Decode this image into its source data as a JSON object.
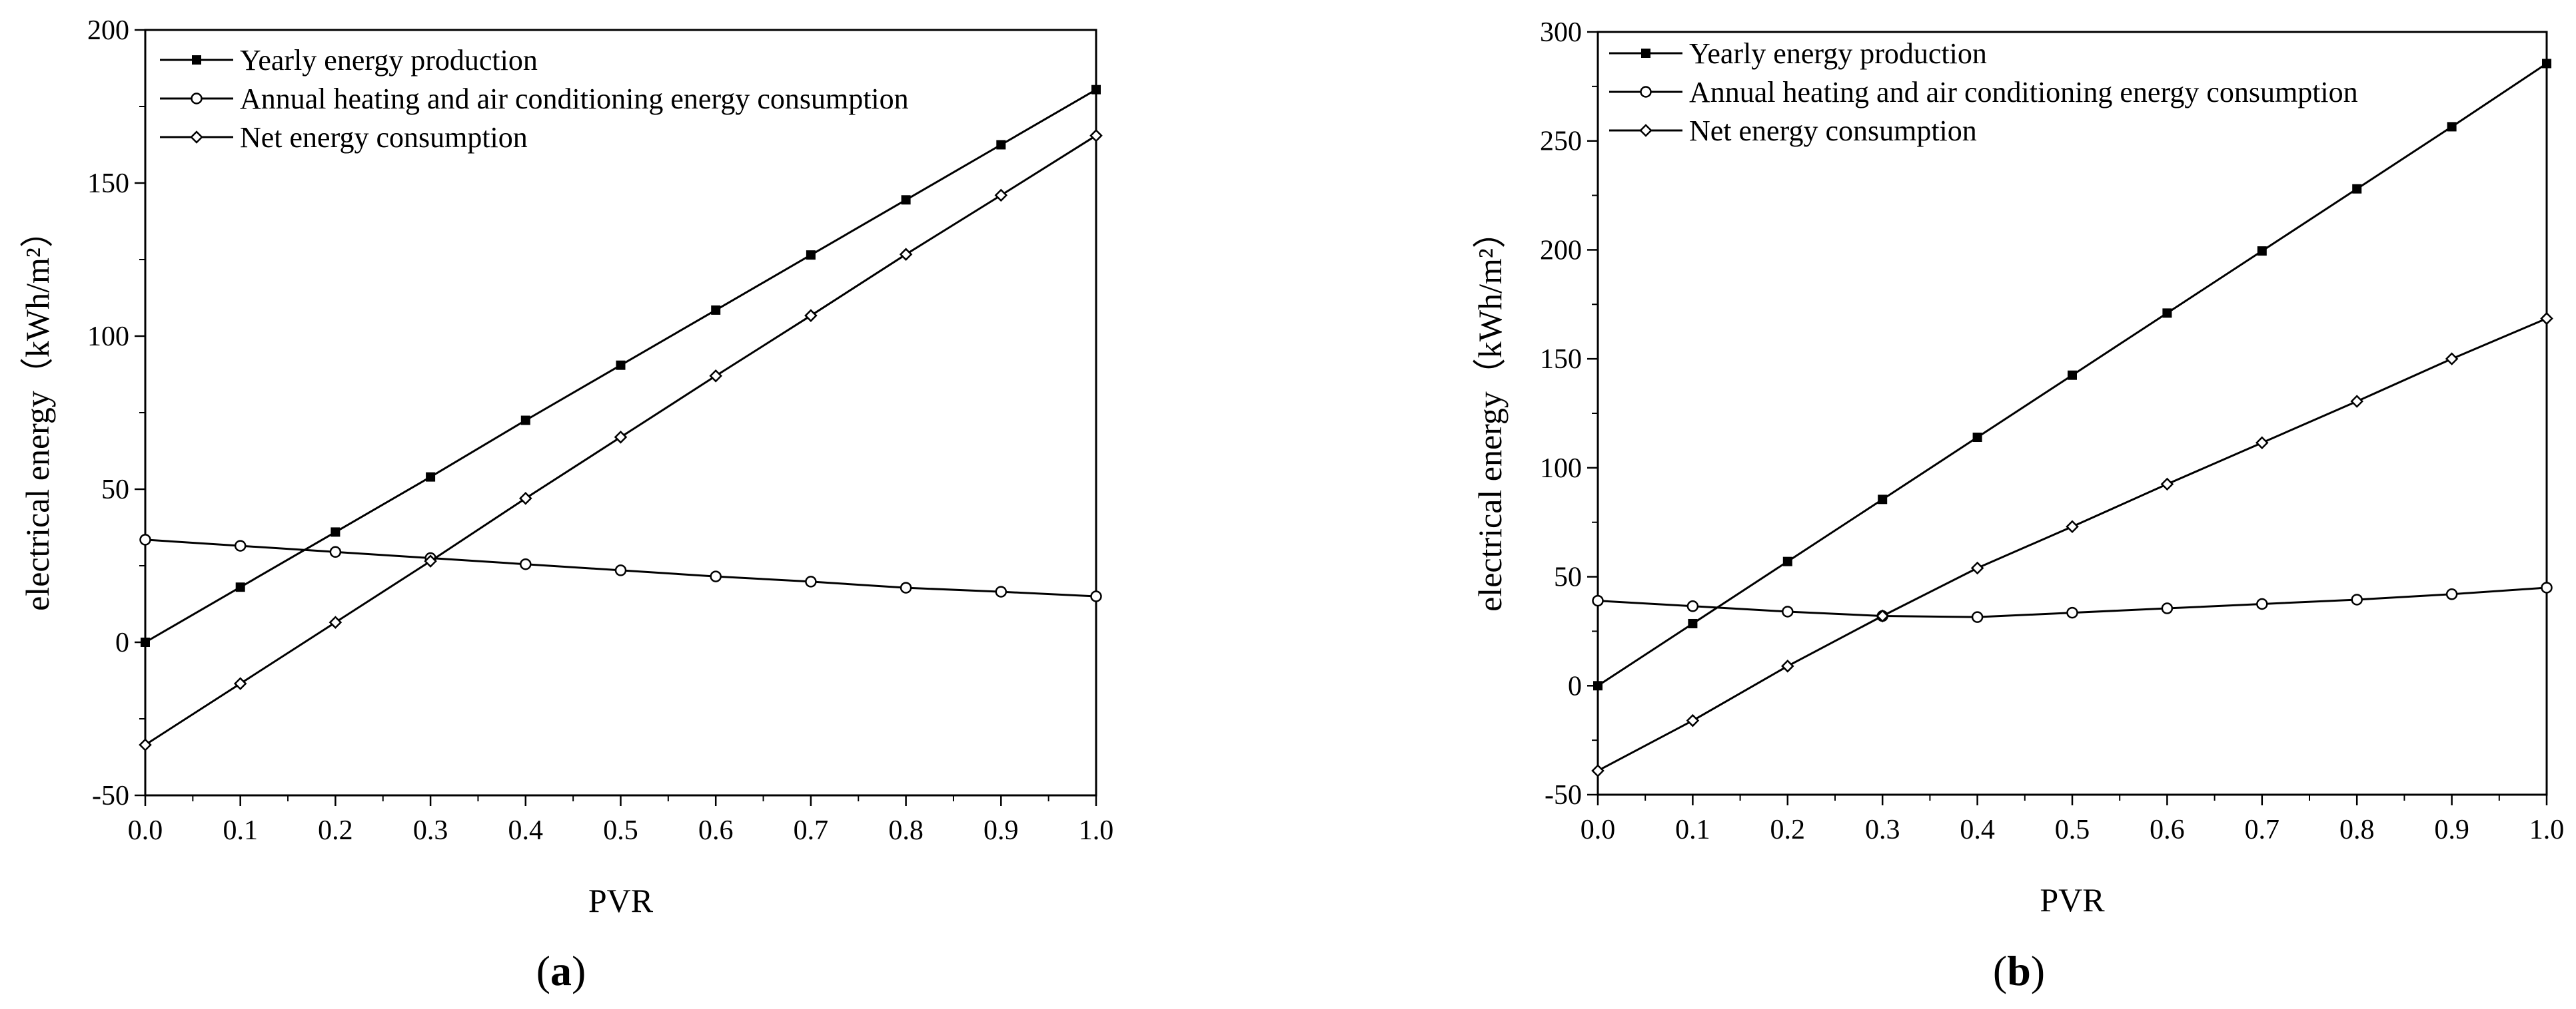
{
  "figure": {
    "panel_labels": [
      "a",
      "b"
    ]
  },
  "chart_data": [
    {
      "type": "line",
      "panel": "a",
      "xlabel": "PVR",
      "ylabel": "electrical energy（kWh/m²）",
      "xlim": [
        0.0,
        1.0
      ],
      "ylim": [
        -50,
        200
      ],
      "x": [
        0.0,
        0.1,
        0.2,
        0.3,
        0.4,
        0.5,
        0.6,
        0.7,
        0.8,
        0.9,
        1.0
      ],
      "x_tick_labels": [
        "0.0",
        "0.1",
        "0.2",
        "0.3",
        "0.4",
        "0.5",
        "0.6",
        "0.7",
        "0.8",
        "0.9",
        "1.0"
      ],
      "y_ticks": [
        -50,
        0,
        50,
        100,
        150,
        200
      ],
      "y_tick_labels": [
        "-50",
        "0",
        "50",
        "100",
        "150",
        "200"
      ],
      "legend_position": "top-left",
      "series": [
        {
          "name": "Yearly energy production",
          "marker": "filled-square",
          "values": [
            0,
            18,
            36,
            54,
            72.5,
            90.5,
            108.5,
            126.5,
            144.5,
            162.5,
            180.5
          ]
        },
        {
          "name": "Annual heating and air conditioning energy consumption",
          "marker": "open-circle",
          "values": [
            33.5,
            31.5,
            29.5,
            27.5,
            25.5,
            23.5,
            21.5,
            19.8,
            17.8,
            16.5,
            15
          ]
        },
        {
          "name": "Net energy consumption",
          "marker": "open-diamond",
          "values": [
            -33.5,
            -13.5,
            6.5,
            26.5,
            47,
            67,
            87,
            106.7,
            126.7,
            146,
            165.5
          ]
        }
      ]
    },
    {
      "type": "line",
      "panel": "b",
      "xlabel": "PVR",
      "ylabel": "electrical energy（kWh/m²）",
      "xlim": [
        0.0,
        1.0
      ],
      "ylim": [
        -50,
        300
      ],
      "x": [
        0.0,
        0.1,
        0.2,
        0.3,
        0.4,
        0.5,
        0.6,
        0.7,
        0.8,
        0.9,
        1.0
      ],
      "x_tick_labels": [
        "0.0",
        "0.1",
        "0.2",
        "0.3",
        "0.4",
        "0.5",
        "0.6",
        "0.7",
        "0.8",
        "0.9",
        "1.0"
      ],
      "y_ticks": [
        -50,
        0,
        50,
        100,
        150,
        200,
        250,
        300
      ],
      "y_tick_labels": [
        "-50",
        "0",
        "50",
        "100",
        "150",
        "200",
        "250",
        "300"
      ],
      "legend_position": "top-left",
      "series": [
        {
          "name": "Yearly energy production",
          "marker": "filled-square",
          "values": [
            0,
            28.5,
            57,
            85.5,
            114,
            142.5,
            171,
            199.5,
            228,
            256.5,
            285.5
          ]
        },
        {
          "name": "Annual heating and air conditioning energy consumption",
          "marker": "open-circle",
          "values": [
            39,
            36.5,
            34,
            32,
            31.5,
            33.5,
            35.5,
            37.5,
            39.5,
            42,
            45
          ]
        },
        {
          "name": "Net energy consumption",
          "marker": "open-diamond",
          "values": [
            -39,
            -16,
            9,
            32,
            54,
            73,
            92.5,
            111.5,
            130.5,
            150,
            168.5
          ]
        }
      ]
    }
  ]
}
